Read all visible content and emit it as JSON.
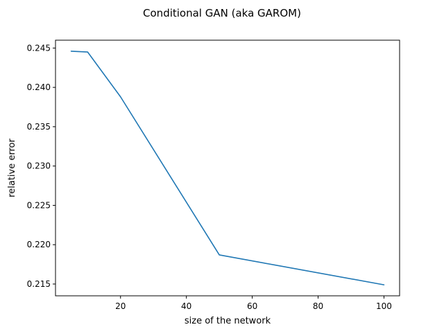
{
  "chart_data": {
    "type": "line",
    "title": "Conditional GAN (aka GAROM)",
    "xlabel": "size of the network",
    "ylabel": "relative error",
    "xlim": [
      0.25,
      104.75
    ],
    "ylim": [
      0.2135,
      0.246
    ],
    "xticks": [
      20,
      40,
      60,
      80,
      100
    ],
    "xtick_labels": [
      "20",
      "40",
      "60",
      "80",
      "100"
    ],
    "yticks": [
      0.215,
      0.22,
      0.225,
      0.23,
      0.235,
      0.24,
      0.245
    ],
    "ytick_labels": [
      "0.215",
      "0.220",
      "0.225",
      "0.230",
      "0.235",
      "0.240",
      "0.245"
    ],
    "grid": false,
    "series": [
      {
        "color": "#1f77b4",
        "x": [
          5,
          10,
          20,
          50,
          100
        ],
        "y": [
          0.2446,
          0.2445,
          0.2388,
          0.2187,
          0.2149
        ]
      }
    ]
  }
}
